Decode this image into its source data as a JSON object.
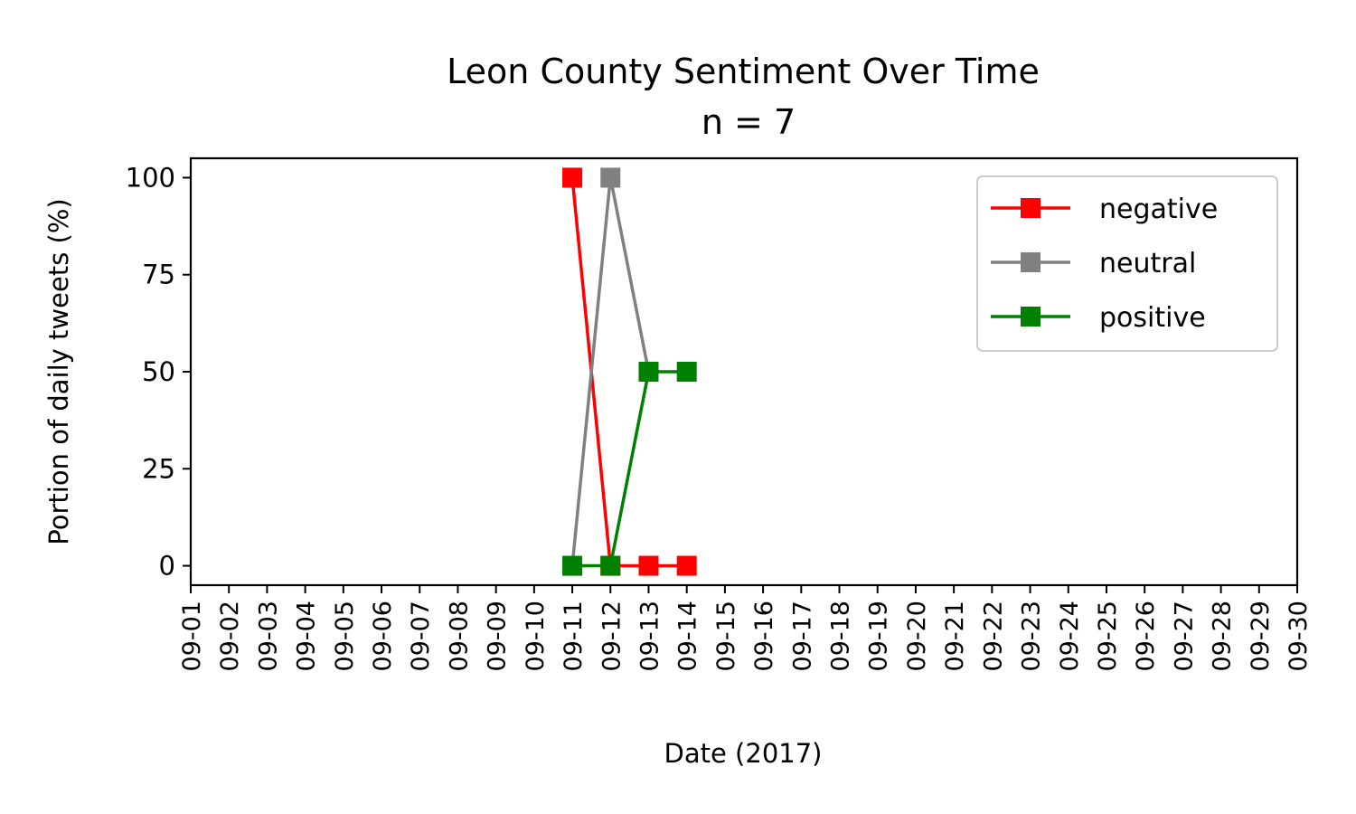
{
  "chart_data": {
    "type": "line",
    "title": "Leon County Sentiment Over Time",
    "subtitle": "n = 7",
    "xlabel": "Date (2017)",
    "ylabel": "Portion of daily tweets (%)",
    "x_categories": [
      "09-01",
      "09-02",
      "09-03",
      "09-04",
      "09-05",
      "09-06",
      "09-07",
      "09-08",
      "09-09",
      "09-10",
      "09-11",
      "09-12",
      "09-13",
      "09-14",
      "09-15",
      "09-16",
      "09-17",
      "09-18",
      "09-19",
      "09-20",
      "09-21",
      "09-22",
      "09-23",
      "09-24",
      "09-25",
      "09-26",
      "09-27",
      "09-28",
      "09-29",
      "09-30"
    ],
    "ylim": [
      -5,
      105
    ],
    "yticks": [
      0,
      25,
      50,
      75,
      100
    ],
    "grid": false,
    "legend_position": "top-right",
    "series": [
      {
        "name": "negative",
        "color": "#ff0000",
        "marker": "square",
        "x": [
          "09-11",
          "09-12",
          "09-13",
          "09-14"
        ],
        "y": [
          100,
          0,
          0,
          0
        ]
      },
      {
        "name": "neutral",
        "color": "#808080",
        "marker": "square",
        "x": [
          "09-11",
          "09-12",
          "09-13"
        ],
        "y": [
          0,
          100,
          50
        ]
      },
      {
        "name": "positive",
        "color": "#008000",
        "marker": "square",
        "x": [
          "09-11",
          "09-12",
          "09-13",
          "09-14"
        ],
        "y": [
          0,
          0,
          50,
          50
        ]
      }
    ]
  }
}
